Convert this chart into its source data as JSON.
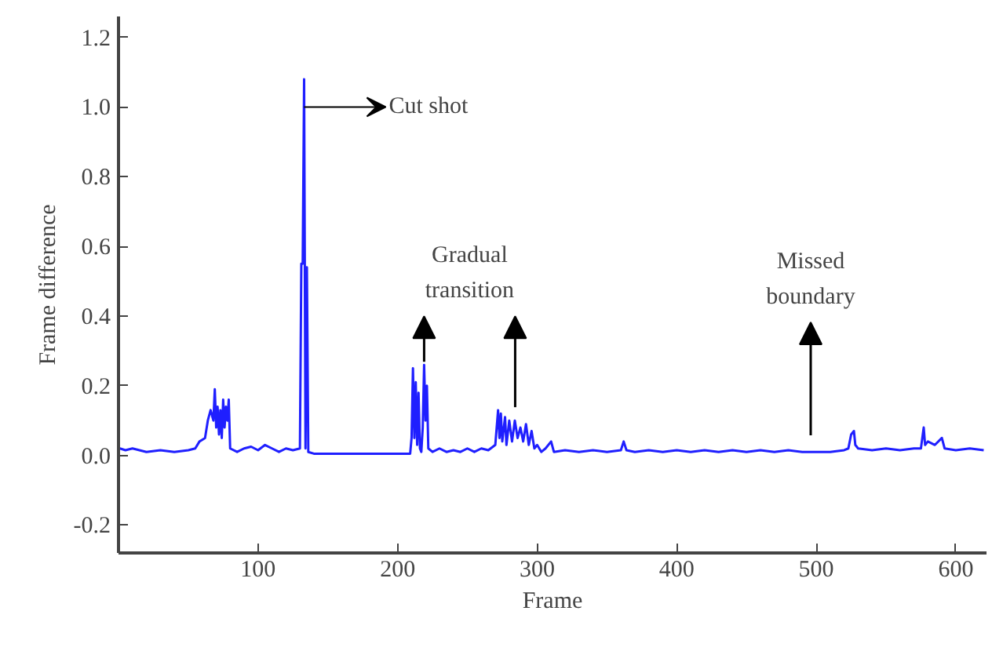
{
  "chart_data": {
    "type": "line",
    "xlabel": "Frame",
    "ylabel": "Frame difference",
    "xlim": [
      0,
      622
    ],
    "ylim": [
      -0.28,
      1.26
    ],
    "xticks": [
      100,
      200,
      300,
      400,
      500,
      600
    ],
    "yticks": [
      {
        "value": -0.2,
        "label": "-0.2"
      },
      {
        "value": 0,
        "label": "0.0"
      },
      {
        "value": 0.2,
        "label": "0.2"
      },
      {
        "value": 0.4,
        "label": "0.4"
      },
      {
        "value": 0.6,
        "label": "0.6"
      },
      {
        "value": 0.8,
        "label": "0.8"
      },
      {
        "value": 1.0,
        "label": "1.0"
      },
      {
        "value": 1.2,
        "label": "1.2"
      }
    ],
    "grid": false,
    "marker": "none",
    "line_style": "solid",
    "annotations": [
      {
        "text": "Cut shot",
        "x": 133,
        "y": 1.0
      },
      {
        "text": "Gradual\ntransition",
        "x": 219,
        "y": 0.26
      },
      "Missed\nboundary"
    ],
    "series": [
      {
        "color": "#1f1fff",
        "x": [
          1,
          5,
          10,
          20,
          30,
          40,
          50,
          55,
          58,
          62,
          64,
          66,
          68,
          69,
          70,
          71,
          72,
          73,
          74,
          75,
          76,
          77,
          78,
          79,
          80,
          85,
          90,
          95,
          100,
          105,
          110,
          115,
          120,
          125,
          130,
          131,
          132,
          133,
          134,
          135,
          136,
          140,
          150,
          160,
          170,
          180,
          190,
          200,
          209,
          210,
          211,
          212,
          213,
          214,
          215,
          216,
          217,
          218,
          219,
          220,
          221,
          222,
          225,
          230,
          235,
          240,
          245,
          250,
          255,
          260,
          265,
          270,
          272,
          273,
          274,
          275,
          277,
          278,
          280,
          282,
          284,
          286,
          288,
          290,
          292,
          294,
          296,
          298,
          300,
          303,
          306,
          310,
          312,
          320,
          330,
          340,
          350,
          360,
          362,
          364,
          370,
          380,
          390,
          400,
          410,
          420,
          430,
          440,
          450,
          460,
          470,
          480,
          490,
          500,
          510,
          520,
          523,
          525,
          527,
          528,
          530,
          540,
          550,
          560,
          570,
          575,
          577,
          578,
          580,
          585,
          590,
          592,
          600,
          610,
          620
        ],
        "values": [
          0.02,
          0.015,
          0.02,
          0.01,
          0.015,
          0.01,
          0.015,
          0.02,
          0.04,
          0.05,
          0.1,
          0.13,
          0.1,
          0.19,
          0.08,
          0.14,
          0.06,
          0.13,
          0.05,
          0.16,
          0.08,
          0.14,
          0.1,
          0.16,
          0.02,
          0.01,
          0.02,
          0.025,
          0.015,
          0.03,
          0.02,
          0.01,
          0.02,
          0.015,
          0.02,
          0.55,
          0.55,
          1.08,
          0.02,
          0.54,
          0.01,
          0.005,
          0.005,
          0.005,
          0.005,
          0.005,
          0.005,
          0.005,
          0.005,
          0.05,
          0.25,
          0.05,
          0.21,
          0.03,
          0.18,
          0.02,
          0.01,
          0.08,
          0.26,
          0.1,
          0.2,
          0.02,
          0.01,
          0.02,
          0.01,
          0.015,
          0.01,
          0.02,
          0.01,
          0.02,
          0.015,
          0.03,
          0.13,
          0.05,
          0.12,
          0.04,
          0.11,
          0.03,
          0.1,
          0.04,
          0.1,
          0.05,
          0.08,
          0.04,
          0.09,
          0.03,
          0.07,
          0.02,
          0.03,
          0.01,
          0.02,
          0.04,
          0.01,
          0.015,
          0.01,
          0.015,
          0.01,
          0.015,
          0.04,
          0.015,
          0.01,
          0.015,
          0.01,
          0.015,
          0.01,
          0.015,
          0.01,
          0.015,
          0.01,
          0.015,
          0.01,
          0.015,
          0.01,
          0.01,
          0.01,
          0.015,
          0.02,
          0.06,
          0.07,
          0.03,
          0.02,
          0.015,
          0.02,
          0.015,
          0.02,
          0.02,
          0.08,
          0.03,
          0.04,
          0.03,
          0.05,
          0.02,
          0.015,
          0.02,
          0.015
        ]
      }
    ]
  }
}
